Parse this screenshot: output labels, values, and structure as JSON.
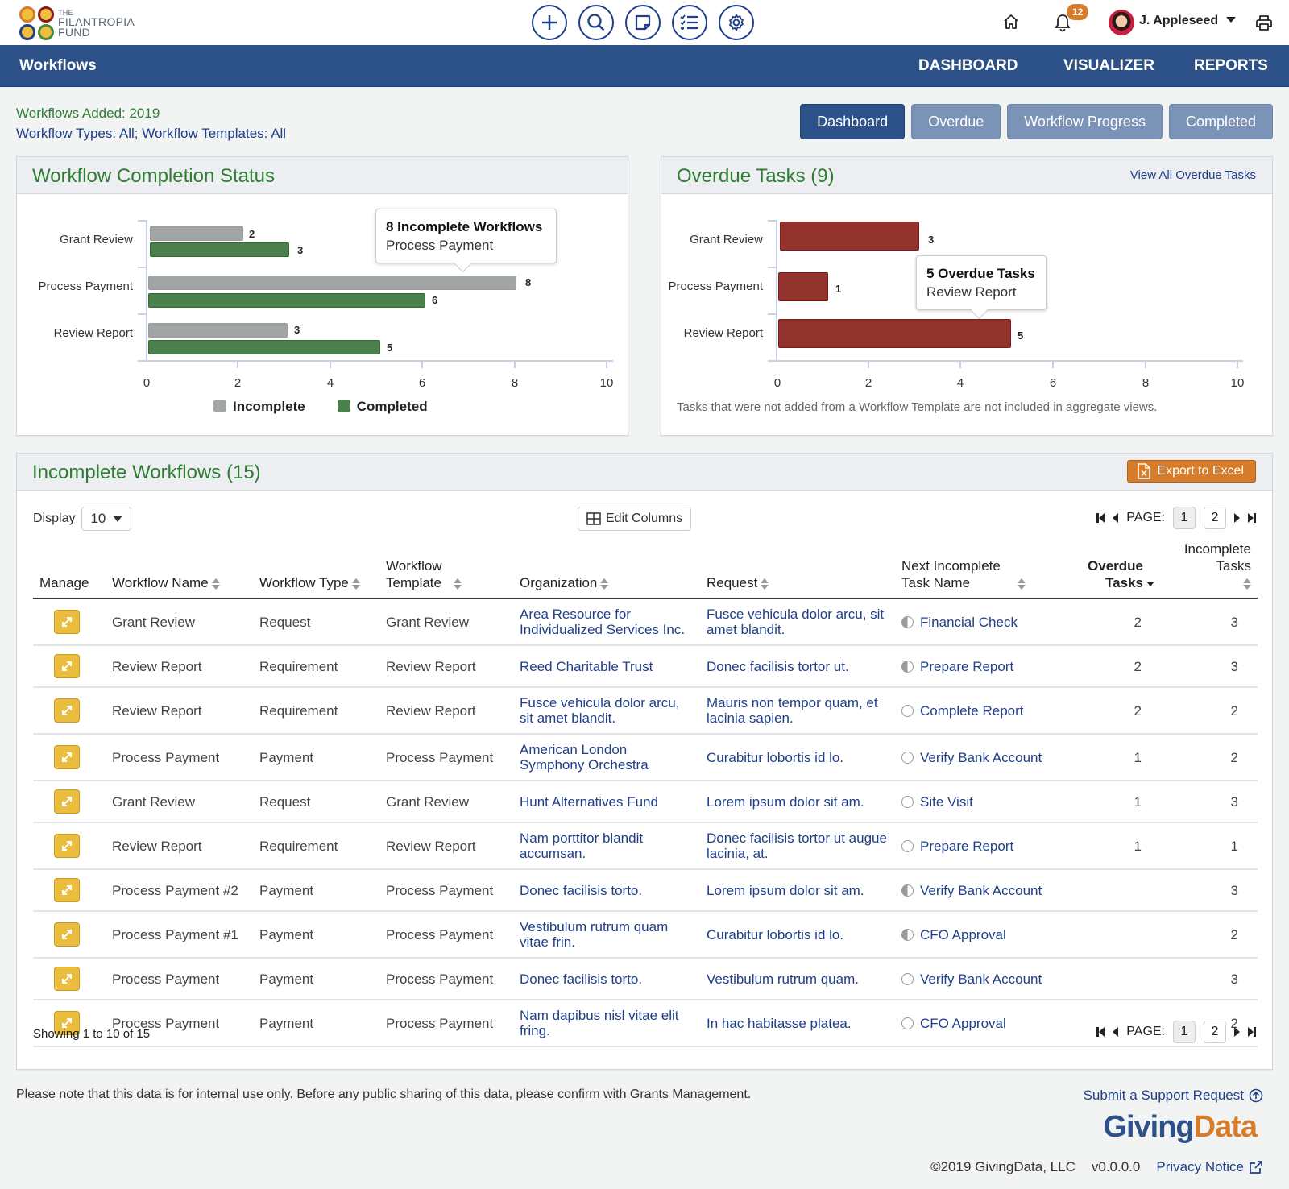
{
  "brand": {
    "the": "THE",
    "line1": "FILANTROPIA",
    "line2": "FUND",
    "circle_colors": [
      "#d77c2a",
      "#8b1a1a",
      "#1f3f8a",
      "#4b8a3c"
    ]
  },
  "top_icons": [
    "plus-icon",
    "search-icon",
    "note-icon",
    "checklist-icon",
    "gear-icon"
  ],
  "user": {
    "name": "J. Appleseed",
    "notifications": "12"
  },
  "nav": {
    "title": "Workflows",
    "links": [
      "DASHBOARD",
      "VISUALIZER",
      "REPORTS"
    ]
  },
  "filters": {
    "added": "Workflows Added: 2019",
    "types": "Workflow Types: All; Workflow Templates: All"
  },
  "tabs": [
    {
      "label": "Dashboard",
      "active": true
    },
    {
      "label": "Overdue",
      "active": false
    },
    {
      "label": "Workflow Progress",
      "active": false
    },
    {
      "label": "Completed",
      "active": false
    }
  ],
  "completion_panel": {
    "title": "Workflow Completion Status",
    "tooltip": {
      "bold": "8 Incomplete Workflows",
      "sub": "Process Payment"
    },
    "legend": [
      "Incomplete",
      "Completed"
    ]
  },
  "overdue_panel": {
    "title": "Overdue Tasks (9)",
    "link": "View All Overdue Tasks",
    "tooltip": {
      "bold": "5 Overdue Tasks",
      "sub": "Review Report"
    },
    "note": "Tasks that were not added from a Workflow Template are not included in aggregate views."
  },
  "chart_data": [
    {
      "type": "bar",
      "orientation": "horizontal",
      "title": "Workflow Completion Status",
      "categories": [
        "Grant Review",
        "Process Payment",
        "Review Report"
      ],
      "series": [
        {
          "name": "Incomplete",
          "color": "#a2a5a6",
          "values": [
            2,
            8,
            3
          ]
        },
        {
          "name": "Completed",
          "color": "#4b7f4c",
          "values": [
            3,
            6,
            5
          ]
        }
      ],
      "xticks": [
        "0",
        "2",
        "4",
        "6",
        "8",
        "10"
      ],
      "xlim": [
        0,
        10
      ],
      "legend_position": "bottom"
    },
    {
      "type": "bar",
      "orientation": "horizontal",
      "title": "Overdue Tasks (9)",
      "categories": [
        "Grant Review",
        "Process Payment",
        "Review Report"
      ],
      "series": [
        {
          "name": "Overdue Tasks",
          "color": "#92342d",
          "values": [
            3,
            1,
            5
          ]
        }
      ],
      "xticks": [
        "0",
        "2",
        "4",
        "6",
        "8",
        "10"
      ],
      "xlim": [
        0,
        10
      ]
    }
  ],
  "table_panel": {
    "title": "Incomplete Workflows (15)",
    "export_label": "Export to Excel",
    "display_label": "Display",
    "display_value": "10",
    "edit_columns": "Edit Columns",
    "page_label": "PAGE:",
    "pages": [
      "1",
      "2"
    ],
    "current_page": "1",
    "showing": "Showing 1 to 10 of 15",
    "columns": [
      "Manage",
      "Workflow Name",
      "Workflow Type",
      "Workflow Template",
      "Organization",
      "Request",
      "Next Incomplete Task Name",
      "Overdue Tasks",
      "Incomplete Tasks"
    ],
    "rows": [
      {
        "name": "Grant Review",
        "type": "Request",
        "template": "Grant Review",
        "org": "Area Resource for Individualized Services Inc.",
        "request": "Fusce vehicula dolor arcu, sit amet blandit.",
        "task": "Financial Check",
        "task_status": "half",
        "overdue": "2",
        "incomplete": "3"
      },
      {
        "name": "Review Report",
        "type": "Requirement",
        "template": "Review Report",
        "org": "Reed Charitable Trust",
        "request": "Donec facilisis tortor ut.",
        "task": "Prepare Report",
        "task_status": "half",
        "overdue": "2",
        "incomplete": "3"
      },
      {
        "name": "Review Report",
        "type": "Requirement",
        "template": "Review Report",
        "org": "Fusce vehicula dolor arcu, sit amet blandit.",
        "request": "Mauris non tempor quam, et lacinia sapien.",
        "task": "Complete Report",
        "task_status": "empty",
        "overdue": "2",
        "incomplete": "2"
      },
      {
        "name": "Process Payment",
        "type": "Payment",
        "template": "Process Payment",
        "org": "American London Symphony Orchestra",
        "request": "Curabitur lobortis id lo.",
        "task": "Verify Bank Account",
        "task_status": "empty",
        "overdue": "1",
        "incomplete": "2"
      },
      {
        "name": "Grant Review",
        "type": "Request",
        "template": "Grant Review",
        "org": "Hunt Alternatives Fund",
        "request": "Lorem ipsum dolor sit am.",
        "task": "Site Visit",
        "task_status": "empty",
        "overdue": "1",
        "incomplete": "3"
      },
      {
        "name": "Review Report",
        "type": "Requirement",
        "template": "Review Report",
        "org": "Nam porttitor blandit accumsan.",
        "request": "Donec facilisis tortor ut augue lacinia, at.",
        "task": "Prepare Report",
        "task_status": "empty",
        "overdue": "1",
        "incomplete": "1"
      },
      {
        "name": "Process Payment #2",
        "type": "Payment",
        "template": "Process Payment",
        "org": "Donec facilisis torto.",
        "request": "Lorem ipsum dolor sit am.",
        "task": "Verify Bank Account",
        "task_status": "half",
        "overdue": "",
        "incomplete": "3"
      },
      {
        "name": "Process Payment #1",
        "type": "Payment",
        "template": "Process Payment",
        "org": "Vestibulum rutrum quam vitae frin.",
        "request": "Curabitur lobortis id lo.",
        "task": "CFO Approval",
        "task_status": "half",
        "overdue": "",
        "incomplete": "2"
      },
      {
        "name": "Process Payment",
        "type": "Payment",
        "template": "Process Payment",
        "org": "Donec facilisis torto.",
        "request": "Vestibulum rutrum quam.",
        "task": "Verify Bank Account",
        "task_status": "empty",
        "overdue": "",
        "incomplete": "3"
      },
      {
        "name": "Process Payment",
        "type": "Payment",
        "template": "Process Payment",
        "org": "Nam dapibus nisl vitae elit fring.",
        "request": "In hac habitasse platea.",
        "task": "CFO Approval",
        "task_status": "empty",
        "overdue": "",
        "incomplete": "2"
      }
    ]
  },
  "footer": {
    "disclaimer": "Please note that this data is for internal use only. Before any public sharing of this data, please confirm with Grants Management.",
    "support": "Submit a Support Request",
    "brand_a": "Giving",
    "brand_b": "Data",
    "copyright": "©2019 GivingData, LLC",
    "version": "v0.0.0.0",
    "privacy": "Privacy Notice"
  },
  "colors": {
    "nav": "#2c5289",
    "accent_green": "#2e7d32",
    "link": "#1f3f8a",
    "orange": "#d77c2a",
    "overdue_red": "#92342d"
  }
}
